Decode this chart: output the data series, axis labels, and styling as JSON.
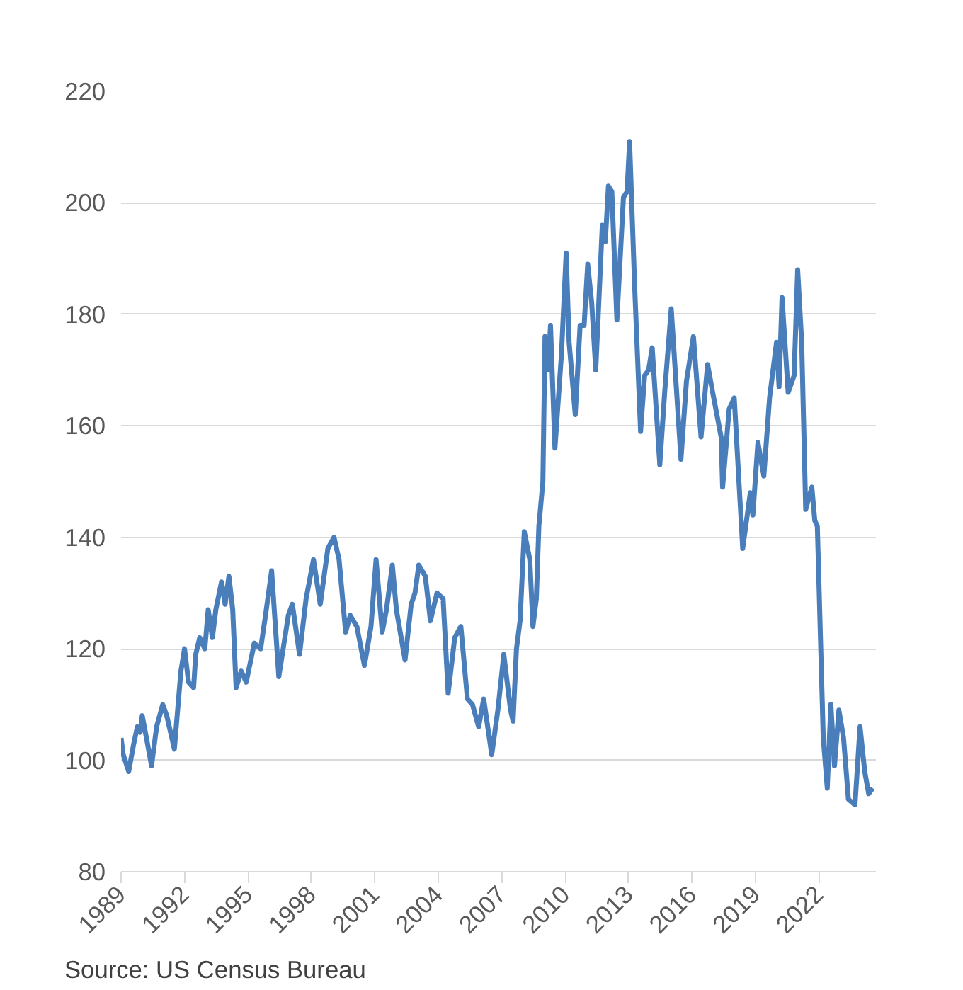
{
  "chart_data": {
    "type": "line",
    "x": [
      1989.0,
      1989.1,
      1989.36,
      1989.6,
      1989.77,
      1989.9,
      1990.0,
      1990.2,
      1990.44,
      1990.68,
      1990.97,
      1991.16,
      1991.52,
      1991.83,
      1992.0,
      1992.19,
      1992.43,
      1992.53,
      1992.72,
      1992.96,
      1993.12,
      1993.32,
      1993.48,
      1993.75,
      1993.92,
      1994.1,
      1994.28,
      1994.44,
      1994.68,
      1994.92,
      1995.3,
      1995.6,
      1995.83,
      1996.12,
      1996.46,
      1996.91,
      1997.1,
      1997.44,
      1997.75,
      1998.1,
      1998.42,
      1998.78,
      1999.07,
      1999.31,
      1999.62,
      1999.84,
      2000.15,
      2000.51,
      2000.82,
      2001.06,
      2001.35,
      2001.55,
      2001.83,
      2002.02,
      2002.43,
      2002.72,
      2002.9,
      2003.08,
      2003.39,
      2003.63,
      2003.94,
      2004.23,
      2004.47,
      2004.78,
      2005.07,
      2005.38,
      2005.62,
      2005.91,
      2006.15,
      2006.53,
      2006.82,
      2006.99,
      2007.1,
      2007.42,
      2007.54,
      2007.7,
      2007.87,
      2008.07,
      2008.33,
      2008.48,
      2008.64,
      2008.76,
      2008.95,
      2009.05,
      2009.19,
      2009.31,
      2009.52,
      2009.83,
      2010.05,
      2010.19,
      2010.48,
      2010.71,
      2010.9,
      2011.07,
      2011.26,
      2011.45,
      2011.76,
      2011.9,
      2012.05,
      2012.21,
      2012.45,
      2012.76,
      2012.93,
      2013.05,
      2013.29,
      2013.57,
      2013.76,
      2013.95,
      2014.12,
      2014.48,
      2014.71,
      2015.02,
      2015.48,
      2015.74,
      2016.07,
      2016.43,
      2016.74,
      2016.98,
      2017.38,
      2017.45,
      2017.76,
      2018.0,
      2018.4,
      2018.76,
      2018.88,
      2019.12,
      2019.4,
      2019.67,
      2020.0,
      2020.12,
      2020.26,
      2020.55,
      2020.83,
      2021.0,
      2021.19,
      2021.38,
      2021.67,
      2021.81,
      2021.93,
      2022.21,
      2022.4,
      2022.57,
      2022.74,
      2022.95,
      2023.17,
      2023.4,
      2023.71,
      2023.95,
      2024.17,
      2024.36,
      2024.55
    ],
    "series": [
      {
        "color": "#4a7ebb",
        "values": [
          104,
          101,
          98,
          103,
          106,
          105,
          108,
          104,
          99,
          106,
          110,
          108,
          102,
          116,
          120,
          114,
          113,
          119,
          122,
          120,
          127,
          122,
          127,
          132,
          128,
          133,
          127,
          113,
          116,
          114,
          121,
          120,
          126,
          134,
          115,
          126,
          128,
          119,
          129,
          136,
          128,
          138,
          140,
          136,
          123,
          126,
          124,
          117,
          124,
          136,
          123,
          127,
          135,
          127,
          118,
          128,
          130,
          135,
          133,
          125,
          130,
          129,
          112,
          122,
          124,
          111,
          110,
          106,
          111,
          101,
          109,
          115,
          119,
          109,
          107,
          120,
          125,
          141,
          136,
          124,
          129,
          142,
          150,
          176,
          170,
          178,
          156,
          173,
          191,
          175,
          162,
          178,
          178,
          189,
          182,
          170,
          196,
          193,
          203,
          202,
          179,
          201,
          202,
          211,
          185,
          159,
          169,
          170,
          174,
          153,
          166,
          181,
          154,
          168,
          176,
          158,
          171,
          166,
          158,
          149,
          163,
          165,
          138,
          148,
          144,
          157,
          151,
          165,
          175,
          167,
          183,
          166,
          169,
          188,
          175,
          145,
          149,
          143,
          142,
          104,
          95,
          110,
          99,
          109,
          104,
          93,
          92,
          106,
          98,
          94,
          95
        ]
      }
    ],
    "xlim": [
      1989,
      2024.7
    ],
    "xticks": [
      1989,
      1992,
      1995,
      1998,
      2001,
      2004,
      2007,
      2010,
      2013,
      2016,
      2019,
      2022
    ],
    "ylim": [
      80,
      220
    ],
    "yticks": [
      80,
      100,
      120,
      140,
      160,
      180,
      200,
      220
    ],
    "grid": "y",
    "marker": "none",
    "line_style": "solid",
    "annotations": [
      "Source: US Census Bureau"
    ]
  }
}
